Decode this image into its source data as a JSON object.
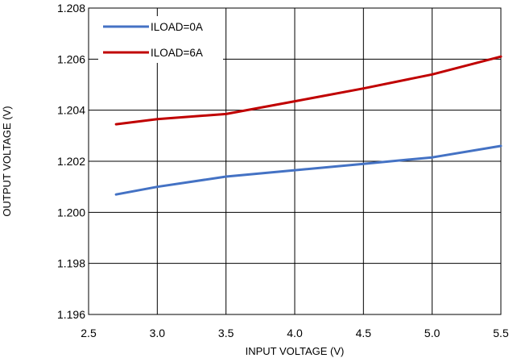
{
  "chart_data": {
    "type": "line",
    "title": "",
    "xlabel": "INPUT VOLTAGE (V)",
    "ylabel": "OUTPUT VOLTAGE (V)",
    "xlim": [
      2.5,
      5.5
    ],
    "ylim": [
      1.196,
      1.208
    ],
    "x_ticks": [
      "2.5",
      "3.0",
      "3.5",
      "4.0",
      "4.5",
      "5.0",
      "5.5"
    ],
    "y_ticks": [
      "1.196",
      "1.198",
      "1.200",
      "1.202",
      "1.204",
      "1.206",
      "1.208"
    ],
    "grid": true,
    "legend_position": "top-left",
    "series": [
      {
        "name": "ILOAD=0A",
        "color": "#4472C4",
        "x": [
          2.7,
          3.0,
          3.5,
          4.0,
          4.5,
          5.0,
          5.5
        ],
        "y": [
          1.2007,
          1.201,
          1.2014,
          1.20165,
          1.2019,
          1.20215,
          1.2026
        ]
      },
      {
        "name": "ILOAD=6A",
        "color": "#C00000",
        "x": [
          2.7,
          3.0,
          3.5,
          4.0,
          4.5,
          5.0,
          5.5
        ],
        "y": [
          1.20345,
          1.20365,
          1.20385,
          1.20435,
          1.20485,
          1.2054,
          1.2061
        ]
      }
    ]
  }
}
